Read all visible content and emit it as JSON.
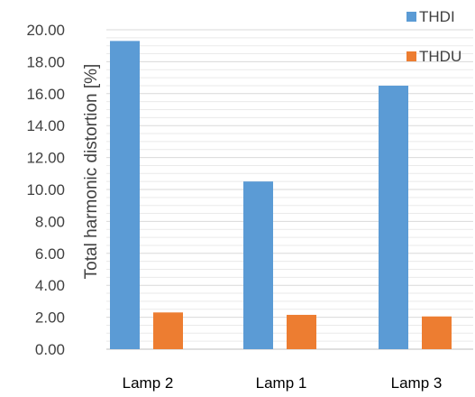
{
  "chart_data": {
    "type": "bar",
    "title": "",
    "xlabel": "",
    "ylabel": "Total harmonic distortion [%]",
    "categories": [
      "Lamp 2",
      "Lamp 1",
      "Lamp 3"
    ],
    "series": [
      {
        "name": "THDI",
        "color": "#5b9bd5",
        "values": [
          19.3,
          10.5,
          16.5
        ]
      },
      {
        "name": "THDU",
        "color": "#ed7d31",
        "values": [
          2.3,
          2.15,
          2.05
        ]
      }
    ],
    "ylim": [
      0,
      20
    ],
    "yticks": [
      "0.00",
      "2.00",
      "4.00",
      "6.00",
      "8.00",
      "10.00",
      "12.00",
      "14.00",
      "16.00",
      "18.00",
      "20.00"
    ],
    "grid": true,
    "legend_position": "top-right"
  }
}
